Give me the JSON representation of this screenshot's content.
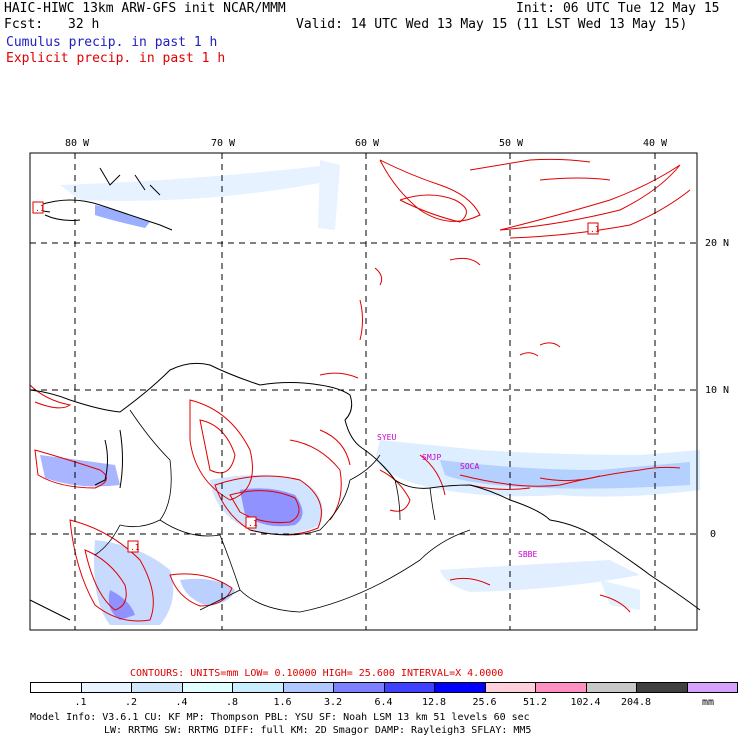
{
  "header": {
    "title_left": "HAIC-HIWC 13km ARW-GFS init   NCAR/MMM",
    "init": "Init: 06 UTC Tue 12 May 15",
    "fcst_label": "Fcst:",
    "fcst_value": "32 h",
    "valid": "Valid: 14 UTC Wed 13 May 15 (11 LST Wed 13 May 15)",
    "legend_cumulus": "Cumulus precip. in past 1 h",
    "legend_explicit": "Explicit precip. in past 1 h"
  },
  "colors": {
    "cumulus": "#2020c0",
    "explicit": "#e00000",
    "station": "#cc00cc"
  },
  "map": {
    "lon_labels": [
      "80 W",
      "70 W",
      "60 W",
      "50 W",
      "40 W"
    ],
    "lat_labels": [
      "20 N",
      "10 N",
      "0"
    ],
    "stations": [
      "SYEU",
      "SMJP",
      "SOCA",
      "SBBE"
    ],
    "markers": [
      ".1",
      ".1",
      ".1",
      ".1"
    ]
  },
  "contours": {
    "caption": "CONTOURS:  UNITS=mm  LOW= 0.10000     HIGH=  25.600     INTERVAL=X  4.0000"
  },
  "colorbar": {
    "unit": "mm",
    "labels": [
      ".1",
      ".2",
      ".4",
      ".8",
      "1.6",
      "3.2",
      "6.4",
      "12.8",
      "25.6",
      "51.2",
      "102.4",
      "204.8"
    ],
    "colors": [
      "#ffffff",
      "#e8f4ff",
      "#cfe6fb",
      "#e0ffff",
      "#c8eeff",
      "#b0c8ff",
      "#7d80ff",
      "#4040ff",
      "#0000ff",
      "#ffd0dc",
      "#ff90c0",
      "#c8c8c8",
      "#404040",
      "#d8a0ff"
    ]
  },
  "footer": {
    "line1": "Model Info: V3.6.1    CU: KF      MP: Thompson    PBL: YSU      SF: Noah LSM    13 km    51 levels   60 sec",
    "line2": "LW: RRTMG    SW: RRTMG   DIFF: full    KM: 2D Smagor DAMP: Rayleigh3  SFLAY: MM5"
  }
}
